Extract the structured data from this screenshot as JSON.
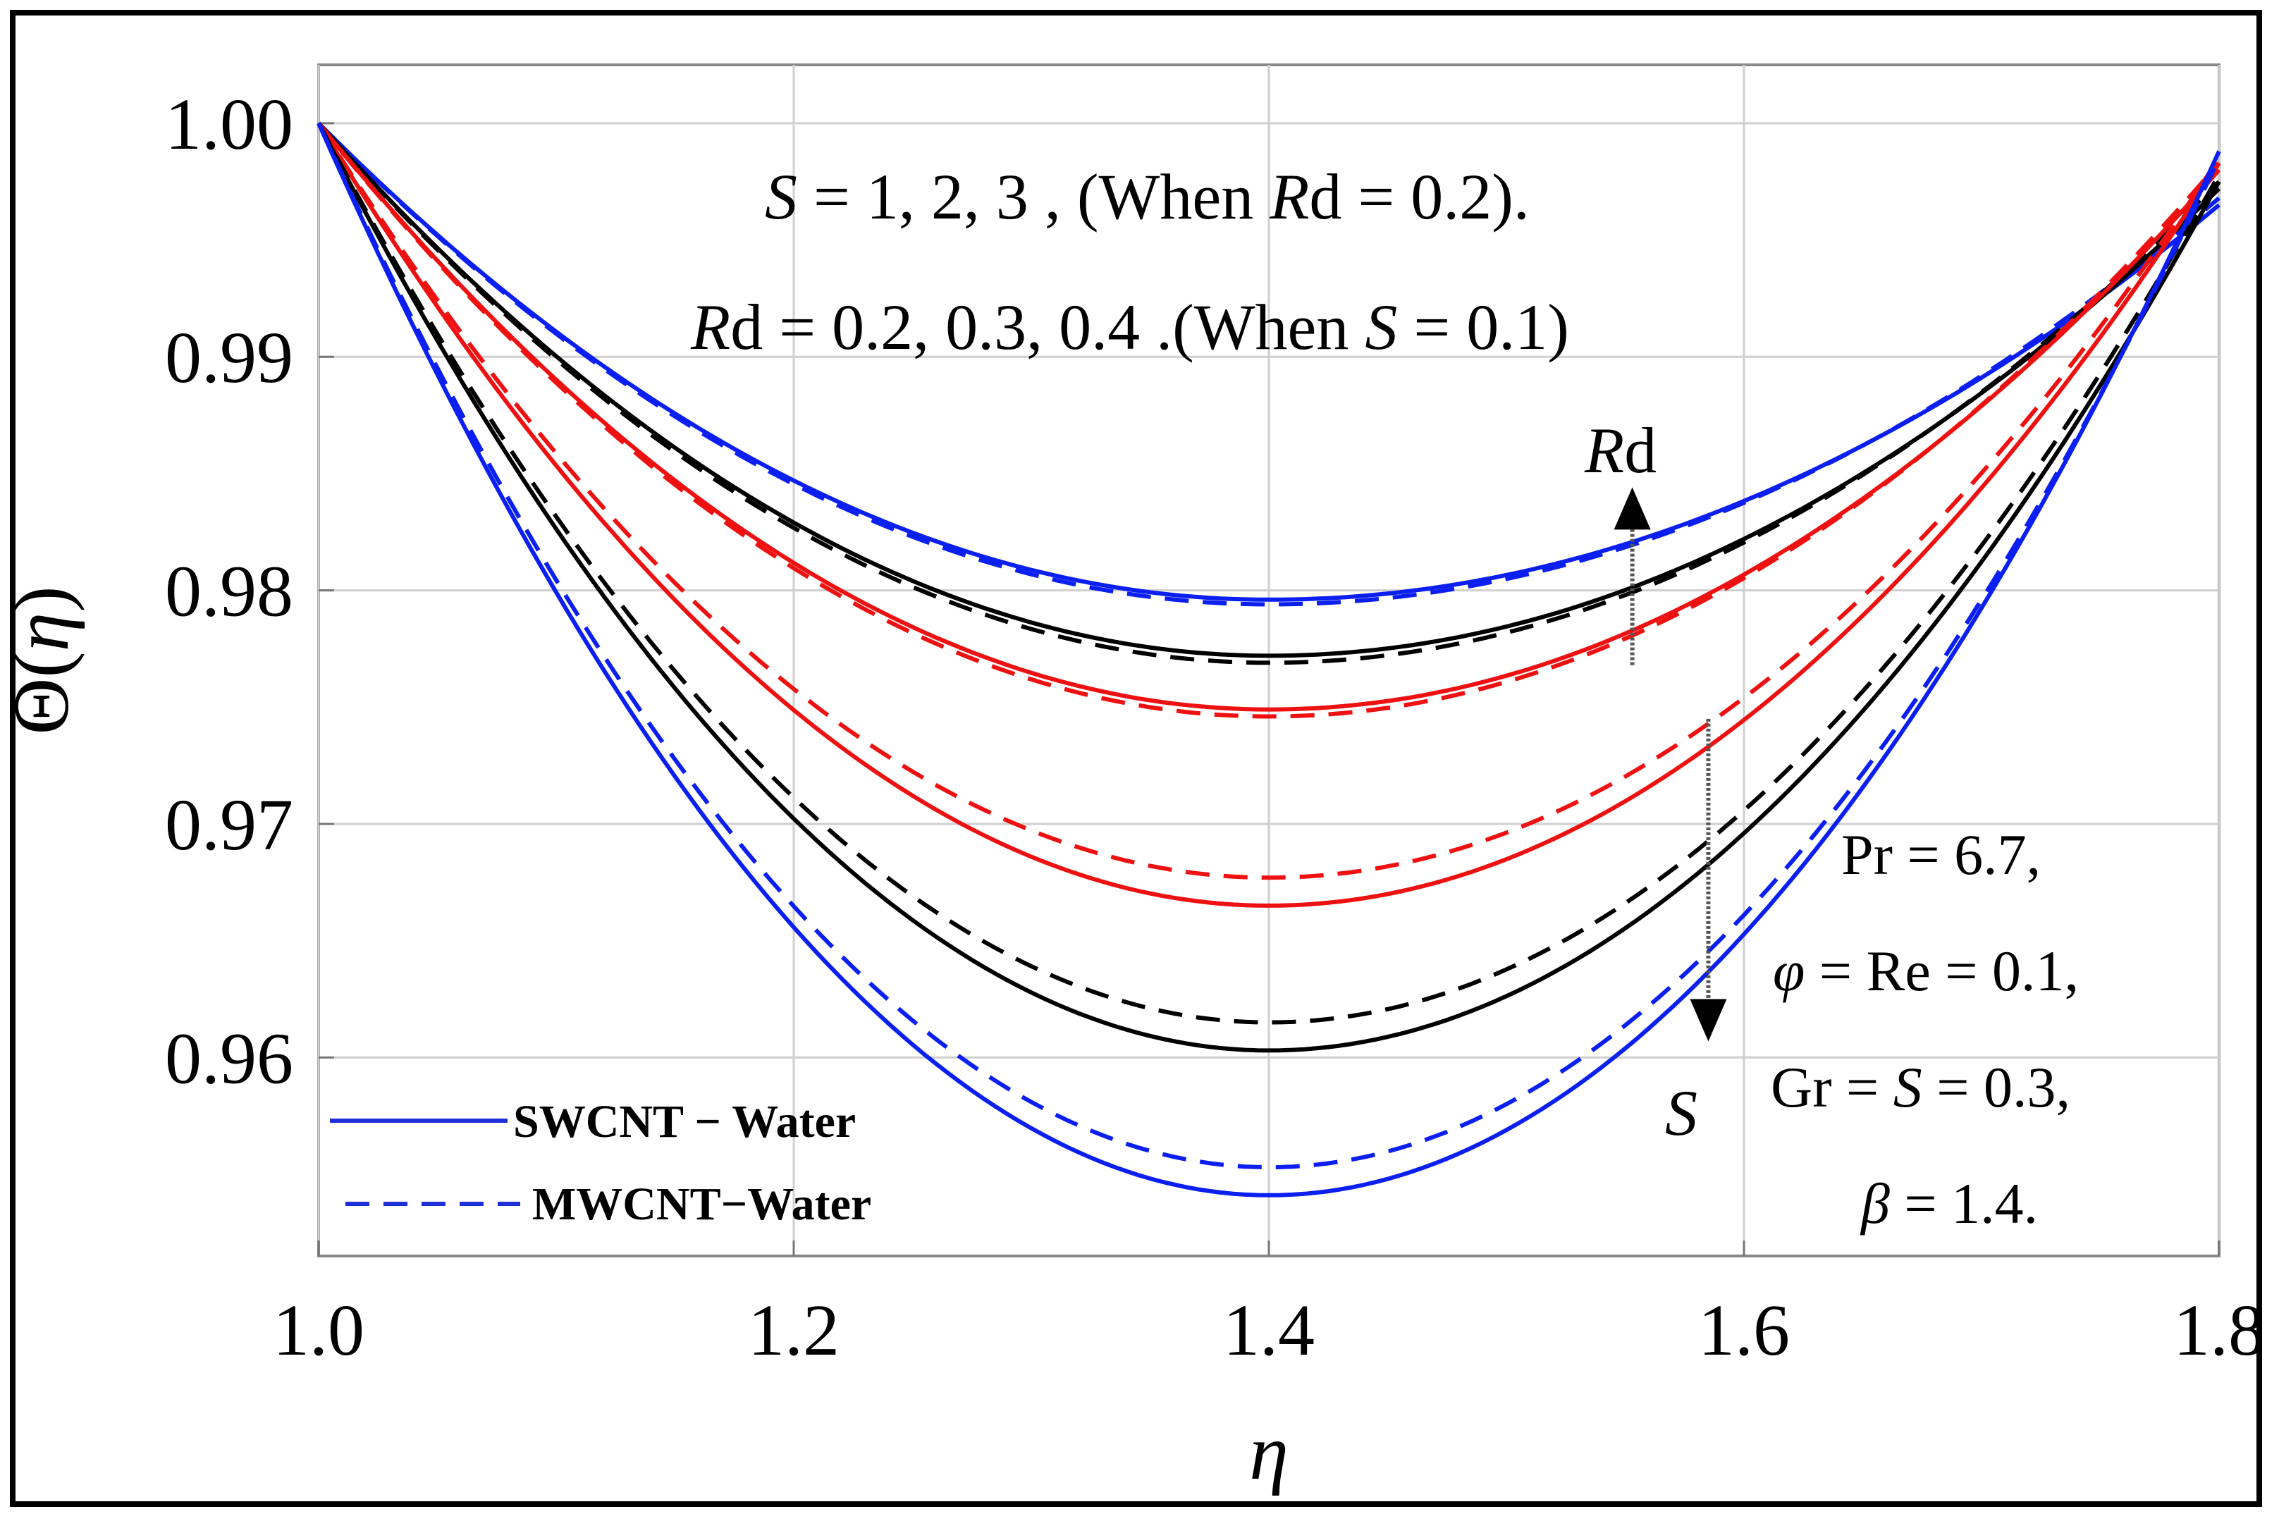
{
  "chart_data": {
    "type": "line",
    "title": "",
    "xlabel": "η",
    "ylabel": "Θ(η)",
    "xlim": [
      1.0,
      1.8
    ],
    "ylim": [
      0.9515,
      1.0025
    ],
    "x_ticks": [
      "1.0",
      "1.2",
      "1.4",
      "1.6",
      "1.8"
    ],
    "y_ticks": [
      "0.96",
      "0.97",
      "0.98",
      "0.99",
      "1.00"
    ],
    "x_tick_values": [
      1.0,
      1.2,
      1.4,
      1.6,
      1.8
    ],
    "y_tick_values": [
      0.96,
      0.97,
      0.98,
      0.99,
      1.0
    ],
    "grid": true,
    "annotations": {
      "line1": {
        "s": "S",
        "mid": " = 1, 2, 3 , (When ",
        "rd_r": "R",
        "rd_d": "d",
        "end": " = 0.2)."
      },
      "line2": {
        "rd_r": "R",
        "rd_d": "d",
        "mid": " = 0.2, 0.3, 0.4 .(When ",
        "s": "S",
        "end": " = 0.1)"
      },
      "rd_arrow": {
        "r": "R",
        "d": "d"
      },
      "s_arrow": {
        "s": "S"
      },
      "params": {
        "pr": "Pr = 6.7,",
        "phi_sym": "φ",
        "phi_rest": " = Re = 0.1,",
        "gr_a": "Gr = ",
        "gr_s": "S",
        "gr_b": " = 0.3,",
        "beta_sym": "β",
        "beta_rest": " = 1.4."
      }
    },
    "legend": {
      "position": "bottom-left",
      "entries": [
        {
          "label": "SWCNT − Water",
          "style": "solid",
          "color": "#1f2fd6"
        },
        {
          "label": "MWCNT−Water",
          "style": "dashed",
          "color": "#1f2fd6"
        }
      ]
    },
    "x_range": [
      1.0,
      1.8
    ],
    "series": [
      {
        "name": "Rd = 0.4 SWCNT",
        "color": "#0a1ff0",
        "style": "solid",
        "min_x": 1.4,
        "min_y": 0.9796,
        "end_y": 0.9965
      },
      {
        "name": "Rd = 0.4 MWCNT",
        "color": "#0a1ff0",
        "style": "dashed",
        "min_x": 1.4,
        "min_y": 0.9794,
        "end_y": 0.9968
      },
      {
        "name": "Rd = 0.3 SWCNT",
        "color": "#000000",
        "style": "solid",
        "min_x": 1.4,
        "min_y": 0.9772,
        "end_y": 0.9972
      },
      {
        "name": "Rd = 0.3 MWCNT",
        "color": "#000000",
        "style": "dashed",
        "min_x": 1.4,
        "min_y": 0.9769,
        "end_y": 0.9975
      },
      {
        "name": "Rd = 0.2 SWCNT",
        "color": "#ee1111",
        "style": "solid",
        "min_x": 1.4,
        "min_y": 0.9749,
        "end_y": 0.998
      },
      {
        "name": "Rd = 0.2 MWCNT",
        "color": "#ee1111",
        "style": "dashed",
        "min_x": 1.4,
        "min_y": 0.9746,
        "end_y": 0.9983
      },
      {
        "name": "S = 1 MWCNT",
        "color": "#ee1111",
        "style": "dashed",
        "min_x": 1.4,
        "min_y": 0.9677,
        "end_y": 0.9985
      },
      {
        "name": "S = 1 SWCNT",
        "color": "#ee1111",
        "style": "solid",
        "min_x": 1.4,
        "min_y": 0.9665,
        "end_y": 0.9983
      },
      {
        "name": "S = 2 MWCNT",
        "color": "#000000",
        "style": "dashed",
        "min_x": 1.4,
        "min_y": 0.9615,
        "end_y": 0.9978
      },
      {
        "name": "S = 2 SWCNT",
        "color": "#000000",
        "style": "solid",
        "min_x": 1.4,
        "min_y": 0.9603,
        "end_y": 0.9975
      },
      {
        "name": "S = 3 MWCNT",
        "color": "#0a1ff0",
        "style": "dashed",
        "min_x": 1.4,
        "min_y": 0.9553,
        "end_y": 0.9985
      },
      {
        "name": "S = 3 SWCNT",
        "color": "#0a1ff0",
        "style": "solid",
        "min_x": 1.4,
        "min_y": 0.9541,
        "end_y": 0.9988
      }
    ],
    "indicator_arrows": [
      {
        "label": "Rd",
        "x": 1.553,
        "y_from": 0.9768,
        "y_to": 0.9826,
        "direction": "up"
      },
      {
        "label": "S",
        "x": 1.585,
        "y_from": 0.9745,
        "y_to": 0.9625,
        "direction": "down"
      }
    ]
  }
}
